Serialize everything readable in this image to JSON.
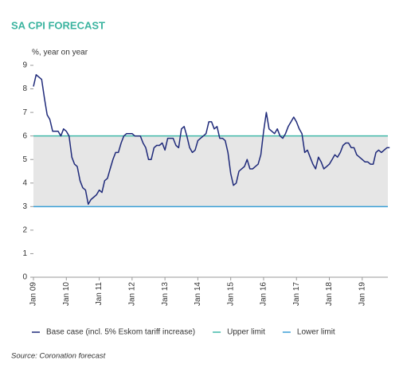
{
  "chart_data": {
    "type": "line",
    "title": "SA CPI FORECAST",
    "y_label": "%, year on year",
    "source": "Source: Coronation forecast",
    "categories": [
      "Jan 09",
      null,
      null,
      null,
      null,
      null,
      null,
      null,
      null,
      null,
      null,
      null,
      "Jan 10",
      null,
      null,
      null,
      null,
      null,
      null,
      null,
      null,
      null,
      null,
      null,
      "Jan 11",
      null,
      null,
      null,
      null,
      null,
      null,
      null,
      null,
      null,
      null,
      null,
      "Jan 12",
      null,
      null,
      null,
      null,
      null,
      null,
      null,
      null,
      null,
      null,
      null,
      "Jan 13",
      null,
      null,
      null,
      null,
      null,
      null,
      null,
      null,
      null,
      null,
      null,
      "Jan 14",
      null,
      null,
      null,
      null,
      null,
      null,
      null,
      null,
      null,
      null,
      null,
      "Jan 15",
      null,
      null,
      null,
      null,
      null,
      null,
      null,
      null,
      null,
      null,
      null,
      "Jan 16",
      null,
      null,
      null,
      null,
      null,
      null,
      null,
      null,
      null,
      null,
      null,
      "Jan 17",
      null,
      null,
      null,
      null,
      null,
      null,
      null,
      null,
      null,
      null,
      null,
      "Jan 18",
      null,
      null,
      null,
      null,
      null,
      null,
      null,
      null,
      null,
      null,
      null,
      "Jan 19",
      null,
      null,
      null,
      null,
      null,
      null,
      null,
      null,
      null,
      null
    ],
    "series": [
      {
        "name": "Base case (incl. 5% Eskom tariff increase)",
        "color": "#1f2a7a",
        "values": [
          8.1,
          8.6,
          8.5,
          8.4,
          7.6,
          6.9,
          6.7,
          6.2,
          6.2,
          6.2,
          6.0,
          6.3,
          6.2,
          6.0,
          5.1,
          4.8,
          4.7,
          4.1,
          3.8,
          3.7,
          3.1,
          3.3,
          3.4,
          3.5,
          3.7,
          3.6,
          4.1,
          4.2,
          4.6,
          5.0,
          5.3,
          5.3,
          5.7,
          6.0,
          6.1,
          6.1,
          6.1,
          6.0,
          6.0,
          6.0,
          5.7,
          5.5,
          5.0,
          5.0,
          5.5,
          5.6,
          5.6,
          5.7,
          5.4,
          5.9,
          5.9,
          5.9,
          5.6,
          5.5,
          6.3,
          6.4,
          6.0,
          5.5,
          5.3,
          5.4,
          5.8,
          5.9,
          6.0,
          6.1,
          6.6,
          6.6,
          6.3,
          6.4,
          5.9,
          5.9,
          5.8,
          5.3,
          4.4,
          3.9,
          4.0,
          4.5,
          4.6,
          4.7,
          5.0,
          4.6,
          4.6,
          4.7,
          4.8,
          5.2,
          6.2,
          7.0,
          6.3,
          6.2,
          6.1,
          6.3,
          6.0,
          5.9,
          6.1,
          6.4,
          6.6,
          6.8,
          6.6,
          6.3,
          6.1,
          5.3,
          5.4,
          5.1,
          4.8,
          4.6,
          5.1,
          4.9,
          4.6,
          4.7,
          4.8,
          5.0,
          5.2,
          5.1,
          5.3,
          5.6,
          5.7,
          5.7,
          5.5,
          5.5,
          5.2,
          5.1,
          5.0,
          4.9,
          4.9,
          4.8,
          4.8,
          5.3,
          5.4,
          5.3,
          5.4,
          5.5,
          5.5
        ]
      }
    ],
    "limits": [
      {
        "name": "Upper limit",
        "value": 6,
        "color": "#3fb8a8"
      },
      {
        "name": "Lower limit",
        "value": 3,
        "color": "#3a9fd6"
      }
    ],
    "band_color": "#e6e6e6",
    "ylim": [
      0,
      9
    ],
    "yticks": [
      0,
      1,
      2,
      3,
      4,
      5,
      6,
      7,
      8,
      9
    ]
  }
}
